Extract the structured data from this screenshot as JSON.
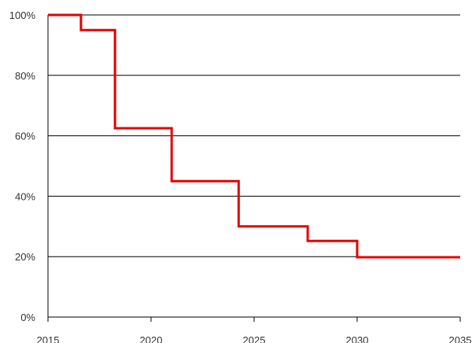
{
  "chart_data": {
    "type": "line",
    "step": true,
    "title": "",
    "xlabel": "",
    "ylabel": "",
    "xlim": [
      2015,
      2035
    ],
    "ylim": [
      0,
      100
    ],
    "xticks": [
      2015,
      2020,
      2025,
      2030,
      2035
    ],
    "yticks": [
      0,
      20,
      40,
      60,
      80,
      100
    ],
    "ytick_suffix": "%",
    "grid": "horizontal",
    "series": [
      {
        "color": "#e60000",
        "x": [
          2015,
          2016.6,
          2018.25,
          2021,
          2024.25,
          2027.6,
          2030,
          2035
        ],
        "y": [
          100,
          95,
          62.5,
          45,
          30,
          25.2,
          19.8,
          19.8
        ]
      }
    ]
  }
}
